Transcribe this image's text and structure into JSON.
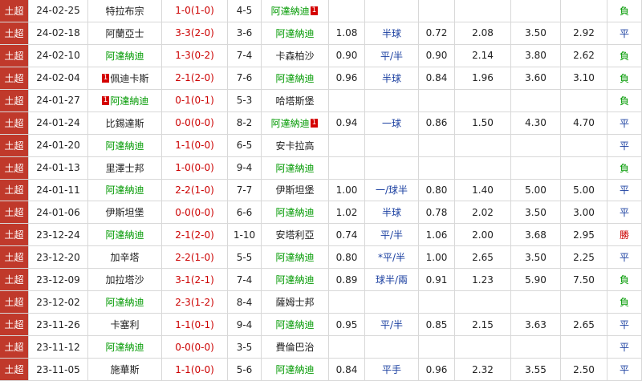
{
  "table": {
    "columns": {
      "league": {
        "bg": "#c0392b",
        "color": "#ffffff"
      },
      "score_color": "#cc0000",
      "handicap_color": "#1a3fa0",
      "default_color": "#222222"
    },
    "rows": [
      {
        "league": "土超",
        "date": "24-02-25",
        "home": "特拉布宗",
        "home_color": "#222222",
        "score": "1-0(1-0)",
        "corner": "4-5",
        "away": "阿達納迪",
        "away_color": "#009900",
        "away_card": "1",
        "result": "負",
        "result_color": "#009900"
      },
      {
        "league": "土超",
        "date": "24-02-18",
        "home": "阿蘭亞士",
        "home_color": "#222222",
        "score": "3-3(2-0)",
        "corner": "3-6",
        "away": "阿達納迪",
        "away_color": "#009900",
        "hc_home": "1.08",
        "hc_line": "半球",
        "hc_away": "0.72",
        "eu_home": "2.08",
        "eu_draw": "3.50",
        "eu_away": "2.92",
        "result": "平",
        "result_color": "#1a3fa0"
      },
      {
        "league": "土超",
        "date": "24-02-10",
        "home": "阿達納迪",
        "home_color": "#009900",
        "score": "1-3(0-2)",
        "corner": "7-4",
        "away": "卡森柏沙",
        "away_color": "#222222",
        "hc_home": "0.90",
        "hc_line": "平/半",
        "hc_away": "0.90",
        "eu_home": "2.14",
        "eu_draw": "3.80",
        "eu_away": "2.62",
        "result": "負",
        "result_color": "#009900"
      },
      {
        "league": "土超",
        "date": "24-02-04",
        "home": "佩迪卡斯",
        "home_color": "#222222",
        "home_card": "1",
        "score": "2-1(2-0)",
        "corner": "7-6",
        "away": "阿達納迪",
        "away_color": "#009900",
        "hc_home": "0.96",
        "hc_line": "半球",
        "hc_away": "0.84",
        "eu_home": "1.96",
        "eu_draw": "3.60",
        "eu_away": "3.10",
        "result": "負",
        "result_color": "#009900"
      },
      {
        "league": "土超",
        "date": "24-01-27",
        "home": "阿達納迪",
        "home_color": "#009900",
        "home_card": "1",
        "score": "0-1(0-1)",
        "corner": "5-3",
        "away": "哈塔斯堡",
        "away_color": "#222222",
        "result": "負",
        "result_color": "#009900"
      },
      {
        "league": "土超",
        "date": "24-01-24",
        "home": "比錫達斯",
        "home_color": "#222222",
        "score": "0-0(0-0)",
        "corner": "8-2",
        "away": "阿達納迪",
        "away_color": "#009900",
        "away_card": "1",
        "hc_home": "0.94",
        "hc_line": "一球",
        "hc_away": "0.86",
        "eu_home": "1.50",
        "eu_draw": "4.30",
        "eu_away": "4.70",
        "result": "平",
        "result_color": "#1a3fa0"
      },
      {
        "league": "土超",
        "date": "24-01-20",
        "home": "阿達納迪",
        "home_color": "#009900",
        "score": "1-1(0-0)",
        "corner": "6-5",
        "away": "安卡拉高",
        "away_color": "#222222",
        "result": "平",
        "result_color": "#1a3fa0"
      },
      {
        "league": "土超",
        "date": "24-01-13",
        "home": "里澤士邦",
        "home_color": "#222222",
        "score": "1-0(0-0)",
        "corner": "9-4",
        "away": "阿達納迪",
        "away_color": "#009900",
        "result": "負",
        "result_color": "#009900"
      },
      {
        "league": "土超",
        "date": "24-01-11",
        "home": "阿達納迪",
        "home_color": "#009900",
        "score": "2-2(1-0)",
        "corner": "7-7",
        "away": "伊斯坦堡",
        "away_color": "#222222",
        "hc_home": "1.00",
        "hc_line": "一/球半",
        "hc_away": "0.80",
        "eu_home": "1.40",
        "eu_draw": "5.00",
        "eu_away": "5.00",
        "result": "平",
        "result_color": "#1a3fa0"
      },
      {
        "league": "土超",
        "date": "24-01-06",
        "home": "伊斯坦堡",
        "home_color": "#222222",
        "score": "0-0(0-0)",
        "corner": "6-6",
        "away": "阿達納迪",
        "away_color": "#009900",
        "hc_home": "1.02",
        "hc_line": "半球",
        "hc_away": "0.78",
        "eu_home": "2.02",
        "eu_draw": "3.50",
        "eu_away": "3.00",
        "result": "平",
        "result_color": "#1a3fa0"
      },
      {
        "league": "土超",
        "date": "23-12-24",
        "home": "阿達納迪",
        "home_color": "#009900",
        "score": "2-1(2-0)",
        "corner": "1-10",
        "away": "安塔利亞",
        "away_color": "#222222",
        "hc_home": "0.74",
        "hc_line": "平/半",
        "hc_away": "1.06",
        "eu_home": "2.00",
        "eu_draw": "3.68",
        "eu_away": "2.95",
        "result": "勝",
        "result_color": "#cc0000"
      },
      {
        "league": "土超",
        "date": "23-12-20",
        "home": "加辛塔",
        "home_color": "#222222",
        "score": "2-2(1-0)",
        "corner": "5-5",
        "away": "阿達納迪",
        "away_color": "#009900",
        "hc_home": "0.80",
        "hc_line": "*平/半",
        "hc_away": "1.00",
        "eu_home": "2.65",
        "eu_draw": "3.50",
        "eu_away": "2.25",
        "result": "平",
        "result_color": "#1a3fa0"
      },
      {
        "league": "土超",
        "date": "23-12-09",
        "home": "加拉塔沙",
        "home_color": "#222222",
        "score": "3-1(2-1)",
        "corner": "7-4",
        "away": "阿達納迪",
        "away_color": "#009900",
        "hc_home": "0.89",
        "hc_line": "球半/兩",
        "hc_away": "0.91",
        "eu_home": "1.23",
        "eu_draw": "5.90",
        "eu_away": "7.50",
        "result": "負",
        "result_color": "#009900"
      },
      {
        "league": "土超",
        "date": "23-12-02",
        "home": "阿達納迪",
        "home_color": "#009900",
        "score": "2-3(1-2)",
        "corner": "8-4",
        "away": "薩姆士邦",
        "away_color": "#222222",
        "result": "負",
        "result_color": "#009900"
      },
      {
        "league": "土超",
        "date": "23-11-26",
        "home": "卡塞利",
        "home_color": "#222222",
        "score": "1-1(0-1)",
        "corner": "9-4",
        "away": "阿達納迪",
        "away_color": "#009900",
        "hc_home": "0.95",
        "hc_line": "平/半",
        "hc_away": "0.85",
        "eu_home": "2.15",
        "eu_draw": "3.63",
        "eu_away": "2.65",
        "result": "平",
        "result_color": "#1a3fa0"
      },
      {
        "league": "土超",
        "date": "23-11-12",
        "home": "阿達納迪",
        "home_color": "#009900",
        "score": "0-0(0-0)",
        "corner": "3-5",
        "away": "費倫巴治",
        "away_color": "#222222",
        "result": "平",
        "result_color": "#1a3fa0"
      },
      {
        "league": "土超",
        "date": "23-11-05",
        "home": "施華斯",
        "home_color": "#222222",
        "score": "1-1(0-0)",
        "corner": "5-6",
        "away": "阿達納迪",
        "away_color": "#009900",
        "hc_home": "0.84",
        "hc_line": "平手",
        "hc_away": "0.96",
        "eu_home": "2.32",
        "eu_draw": "3.55",
        "eu_away": "2.50",
        "result": "平",
        "result_color": "#1a3fa0"
      }
    ]
  }
}
